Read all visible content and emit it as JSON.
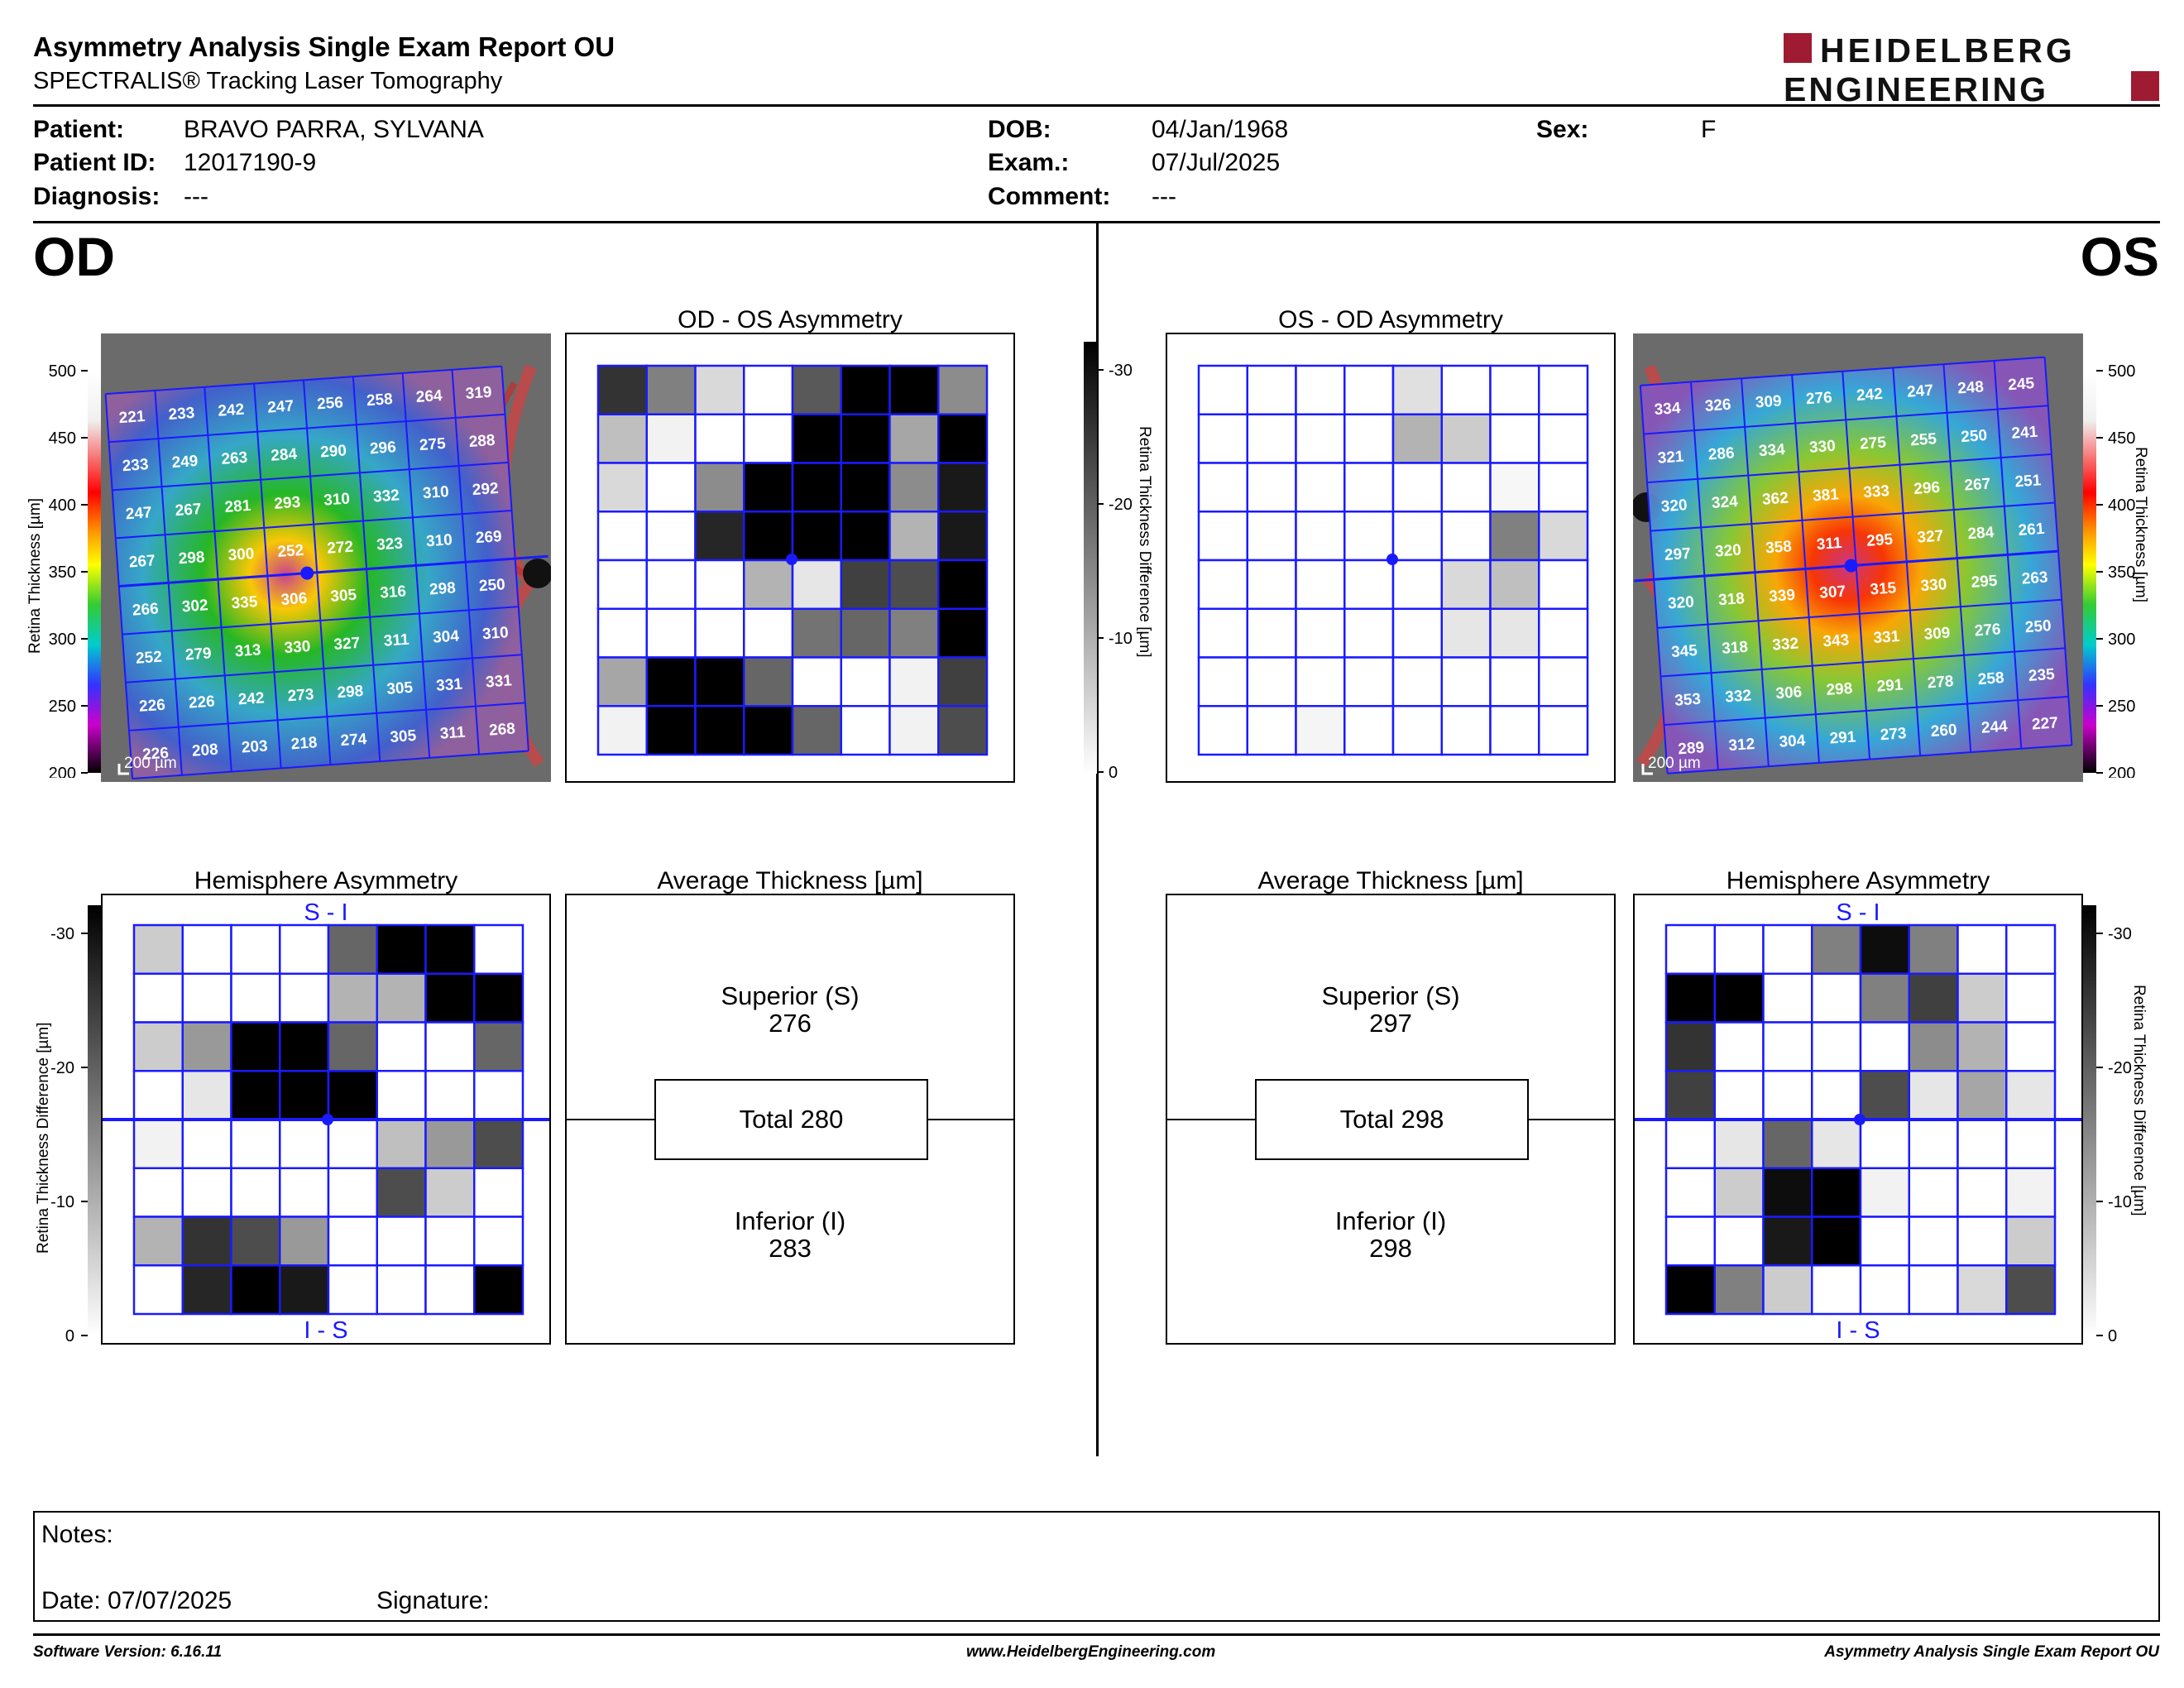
{
  "report": {
    "title": "Asymmetry Analysis Single Exam Report OU",
    "subtitle": "SPECTRALIS® Tracking Laser Tomography",
    "logo_line1": "HEIDELBERG",
    "logo_line2": "ENGINEERING"
  },
  "patient": {
    "patient_label": "Patient:",
    "patient_value": "BRAVO PARRA, SYLVANA",
    "id_label": "Patient ID:",
    "id_value": "12017190-9",
    "diagnosis_label": "Diagnosis:",
    "diagnosis_value": "---",
    "dob_label": "DOB:",
    "dob_value": "04/Jan/1968",
    "exam_label": "Exam.:",
    "exam_value": "07/Jul/2025",
    "comment_label": "Comment:",
    "comment_value": "---",
    "sex_label": "Sex:",
    "sex_value": "F"
  },
  "eyes": {
    "od": "OD",
    "os": "OS"
  },
  "titles": {
    "od_asym": "OD - OS Asymmetry",
    "os_asym": "OS - OD Asymmetry",
    "hemi": "Hemisphere Asymmetry",
    "avg": "Average Thickness [µm]",
    "s_i": "S - I",
    "i_s": "I - S",
    "scale_label": "200 µm"
  },
  "color_scale": {
    "label": "Retina  Thickness [µm]",
    "ticks": [
      "500",
      "450",
      "400",
      "350",
      "300",
      "250",
      "200"
    ]
  },
  "diff_scale": {
    "label": "Retina Thickness Difference [µm]",
    "ticks": [
      "-30",
      "-20",
      "-10",
      "0"
    ]
  },
  "od": {
    "thickness_grid": [
      [
        221,
        233,
        242,
        247,
        256,
        258,
        264,
        319
      ],
      [
        233,
        249,
        263,
        284,
        290,
        296,
        275,
        288
      ],
      [
        247,
        267,
        281,
        293,
        310,
        332,
        310,
        292
      ],
      [
        267,
        298,
        300,
        252,
        272,
        323,
        310,
        269
      ],
      [
        266,
        302,
        335,
        306,
        305,
        316,
        298,
        250
      ],
      [
        252,
        279,
        313,
        330,
        327,
        311,
        304,
        310
      ],
      [
        226,
        226,
        242,
        273,
        298,
        305,
        331,
        331
      ],
      [
        226,
        208,
        203,
        218,
        274,
        305,
        311,
        268
      ]
    ],
    "asym_grid": [
      [
        0.8,
        0.5,
        0.15,
        0,
        0.65,
        1,
        1,
        0.45
      ],
      [
        0.25,
        0.05,
        0,
        0,
        1,
        1,
        0.35,
        1
      ],
      [
        0.15,
        0,
        0.45,
        1,
        1,
        1,
        0.45,
        0.9
      ],
      [
        0,
        0,
        0.85,
        1,
        1,
        1,
        0.3,
        0.9
      ],
      [
        0,
        0,
        0,
        0.3,
        0.1,
        0.75,
        0.7,
        1
      ],
      [
        0,
        0,
        0,
        0,
        0.55,
        0.6,
        0.5,
        1
      ],
      [
        0.35,
        1,
        1,
        0.6,
        0,
        0,
        0.05,
        0.75
      ],
      [
        0.05,
        1,
        1,
        1,
        0.6,
        0,
        0.05,
        0.7
      ]
    ],
    "hemi_grid": [
      [
        0.2,
        0,
        0,
        0,
        0.6,
        1,
        1,
        0
      ],
      [
        0,
        0,
        0,
        0,
        0.3,
        0.3,
        1,
        1
      ],
      [
        0.2,
        0.4,
        1,
        1,
        0.6,
        0,
        0,
        0.6
      ],
      [
        0,
        0.1,
        1,
        1,
        1,
        0,
        0,
        0
      ],
      [
        0.05,
        0,
        0,
        0,
        0,
        0.25,
        0.4,
        0.7
      ],
      [
        0,
        0,
        0,
        0,
        0,
        0.7,
        0.2,
        0
      ],
      [
        0.3,
        0.8,
        0.7,
        0.4,
        0,
        0,
        0,
        0
      ],
      [
        0,
        0.85,
        1,
        0.9,
        0,
        0,
        0,
        1
      ]
    ],
    "avg": {
      "superior_label": "Superior (S)",
      "superior": "276",
      "total_label": "Total 280",
      "inferior_label": "Inferior (I)",
      "inferior": "283"
    }
  },
  "os": {
    "thickness_grid": [
      [
        334,
        326,
        309,
        276,
        242,
        247,
        248,
        245
      ],
      [
        321,
        286,
        334,
        330,
        275,
        255,
        250,
        241
      ],
      [
        320,
        324,
        362,
        381,
        333,
        296,
        267,
        251
      ],
      [
        297,
        320,
        358,
        311,
        295,
        327,
        284,
        261
      ],
      [
        320,
        318,
        339,
        307,
        315,
        330,
        295,
        263
      ],
      [
        345,
        318,
        332,
        343,
        331,
        309,
        276,
        250
      ],
      [
        353,
        332,
        306,
        298,
        291,
        278,
        258,
        235
      ],
      [
        289,
        312,
        304,
        291,
        273,
        260,
        244,
        227
      ]
    ],
    "asym_grid": [
      [
        0,
        0,
        0,
        0,
        0.12,
        0,
        0,
        0
      ],
      [
        0,
        0,
        0,
        0,
        0.3,
        0.2,
        0,
        0
      ],
      [
        0,
        0,
        0,
        0,
        0,
        0,
        0.03,
        0
      ],
      [
        0,
        0,
        0,
        0,
        0,
        0,
        0.5,
        0.15
      ],
      [
        0,
        0,
        0,
        0,
        0,
        0.15,
        0.25,
        0
      ],
      [
        0,
        0,
        0,
        0,
        0,
        0.1,
        0.1,
        0
      ],
      [
        0,
        0,
        0,
        0,
        0,
        0,
        0,
        0
      ],
      [
        0,
        0,
        0.04,
        0,
        0,
        0,
        0,
        0
      ]
    ],
    "hemi_grid": [
      [
        0,
        0,
        0,
        0.5,
        0.95,
        0.5,
        0,
        0
      ],
      [
        1,
        1,
        0,
        0,
        0.5,
        0.75,
        0.2,
        0
      ],
      [
        0.8,
        0,
        0,
        0,
        0,
        0.45,
        0.3,
        0
      ],
      [
        0.75,
        0,
        0,
        0,
        0.7,
        0.1,
        0.35,
        0.1
      ],
      [
        0,
        0.1,
        0.6,
        0.1,
        0,
        0,
        0,
        0
      ],
      [
        0,
        0.2,
        0.95,
        1,
        0.05,
        0,
        0,
        0.05
      ],
      [
        0,
        0,
        0.9,
        1,
        0,
        0,
        0,
        0.2
      ],
      [
        1,
        0.5,
        0.2,
        0,
        0,
        0,
        0.15,
        0.7
      ]
    ],
    "avg": {
      "superior_label": "Superior (S)",
      "superior": "297",
      "total_label": "Total 298",
      "inferior_label": "Inferior (I)",
      "inferior": "298"
    }
  },
  "notes": {
    "notes_label": "Notes:",
    "date_label": "Date: 07/07/2025",
    "signature_label": "Signature:"
  },
  "footer": {
    "software": "Software Version: 6.16.11",
    "website": "www.HeidelbergEngineering.com",
    "report_name": "Asymmetry Analysis Single Exam Report OU"
  }
}
